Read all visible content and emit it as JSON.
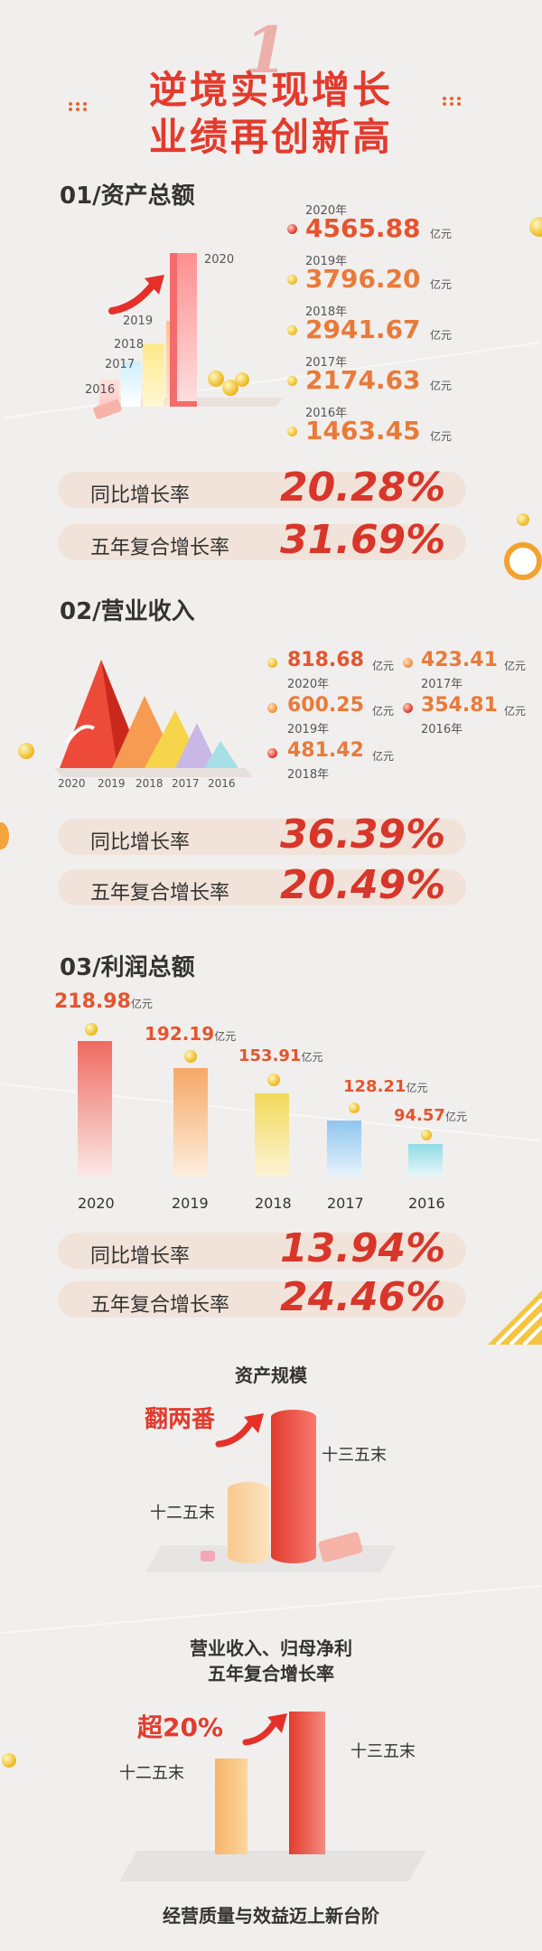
{
  "header": {
    "number": "1",
    "line1": "逆境实现增长",
    "line2": "业绩再创新高"
  },
  "assets": {
    "heading": "01/资产总额",
    "items": [
      {
        "year": "2020年",
        "value": "4565.88",
        "unit": "亿元"
      },
      {
        "year": "2019年",
        "value": "3796.20",
        "unit": "亿元"
      },
      {
        "year": "2018年",
        "value": "2941.67",
        "unit": "亿元"
      },
      {
        "year": "2017年",
        "value": "2174.63",
        "unit": "亿元"
      },
      {
        "year": "2016年",
        "value": "1463.45",
        "unit": "亿元"
      }
    ],
    "bar_labels": [
      "2020",
      "2019",
      "2018",
      "2017",
      "2016"
    ],
    "yoy_label": "同比增长率",
    "yoy_value": "20.28%",
    "cagr_label": "五年复合增长率",
    "cagr_value": "31.69%"
  },
  "revenue": {
    "heading": "02/营业收入",
    "items": [
      {
        "year": "2020年",
        "value": "818.68",
        "unit": "亿元"
      },
      {
        "year": "2019年",
        "value": "600.25",
        "unit": "亿元"
      },
      {
        "year": "2018年",
        "value": "481.42",
        "unit": "亿元"
      },
      {
        "year": "2017年",
        "value": "423.41",
        "unit": "亿元"
      },
      {
        "year": "2016年",
        "value": "354.81",
        "unit": "亿元"
      }
    ],
    "axis_labels": [
      "2020",
      "2019",
      "2018",
      "2017",
      "2016"
    ],
    "yoy_label": "同比增长率",
    "yoy_value": "36.39%",
    "cagr_label": "五年复合增长率",
    "cagr_value": "20.49%"
  },
  "profit": {
    "heading": "03/利润总额",
    "items": [
      {
        "year": "2020",
        "value": "218.98",
        "unit": "亿元"
      },
      {
        "year": "2019",
        "value": "192.19",
        "unit": "亿元"
      },
      {
        "year": "2018",
        "value": "153.91",
        "unit": "亿元"
      },
      {
        "year": "2017",
        "value": "128.21",
        "unit": "亿元"
      },
      {
        "year": "2016",
        "value": "94.57",
        "unit": "亿元"
      }
    ],
    "yoy_label": "同比增长率",
    "yoy_value": "13.94%",
    "cagr_label": "五年复合增长率",
    "cagr_value": "24.46%"
  },
  "scale": {
    "title": "资产规模",
    "callout": "翻两番",
    "left_label": "十二五末",
    "right_label": "十三五末"
  },
  "growth": {
    "title1": "营业收入、归母净利",
    "title2": "五年复合增长率",
    "callout_prefix": "超",
    "callout_value": "20%",
    "left_label": "十二五末",
    "right_label": "十三五末"
  },
  "footer": {
    "text": "经营质量与效益迈上新台阶"
  },
  "colors": {
    "accent": "#e23b2e",
    "value": "#e5542e",
    "pill": "#f0d8c8"
  }
}
